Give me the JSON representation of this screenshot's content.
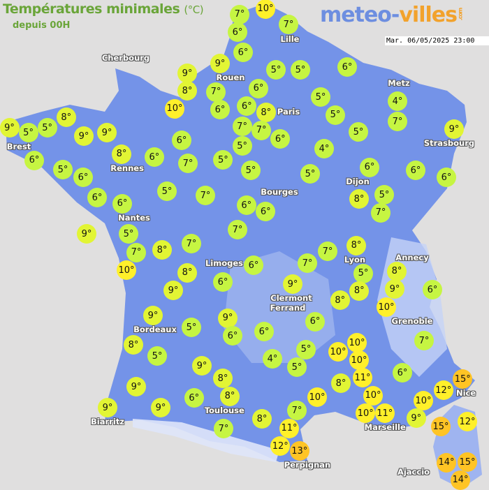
{
  "header": {
    "title": "Températures minimales",
    "unit": "(°C)",
    "subtitle": "depuis 00H",
    "logo_main": "meteo-",
    "logo_accent": "villes",
    "logo_suffix": ".com",
    "datetime": "Mar. 06/05/2025 23:00"
  },
  "colors": {
    "land": "#7493e8",
    "sea": "#e0dfdf",
    "cool": "#c6f542",
    "mild": "#e2f534",
    "warm": "#fff02a",
    "hot": "#ffc425"
  },
  "cities": [
    "Lille",
    "Cherbourg",
    "Rouen",
    "Paris",
    "Metz",
    "Strasbourg",
    "Brest",
    "Rennes",
    "Dijon",
    "Bourges",
    "Nantes",
    "Limoges",
    "Lyon",
    "Annecy",
    "Clermont",
    "Ferrand",
    "Grenoble",
    "Bordeaux",
    "Toulouse",
    "Biarritz",
    "Marseille",
    "Nice",
    "Perpignan",
    "Ajaccio"
  ],
  "temperatures": [
    7,
    10,
    6,
    7,
    6,
    9,
    9,
    8,
    10,
    7,
    6,
    6,
    6,
    8,
    7,
    7,
    6,
    5,
    5,
    6,
    5,
    5,
    5,
    4,
    5,
    6,
    8,
    5,
    7,
    4,
    7,
    9,
    6,
    6,
    5,
    5,
    5,
    7,
    6,
    6,
    8,
    9,
    9,
    8,
    9,
    5,
    5,
    6,
    5,
    6,
    6,
    6,
    5,
    7,
    5,
    9,
    7,
    10,
    8,
    7,
    7,
    6,
    6,
    8,
    9,
    6,
    6,
    7,
    7,
    8,
    5,
    8,
    8,
    9,
    6,
    9,
    8,
    10,
    6,
    6,
    9,
    6,
    5,
    9,
    8,
    5,
    9,
    9,
    9,
    6,
    9,
    8,
    8,
    7,
    8,
    4,
    5,
    5,
    10,
    10,
    10,
    11,
    8,
    10,
    10,
    11,
    10,
    7,
    11,
    12,
    13,
    10,
    9,
    12,
    15,
    15,
    12,
    14,
    15,
    14,
    6,
    7
  ],
  "unit_symbol": "°"
}
